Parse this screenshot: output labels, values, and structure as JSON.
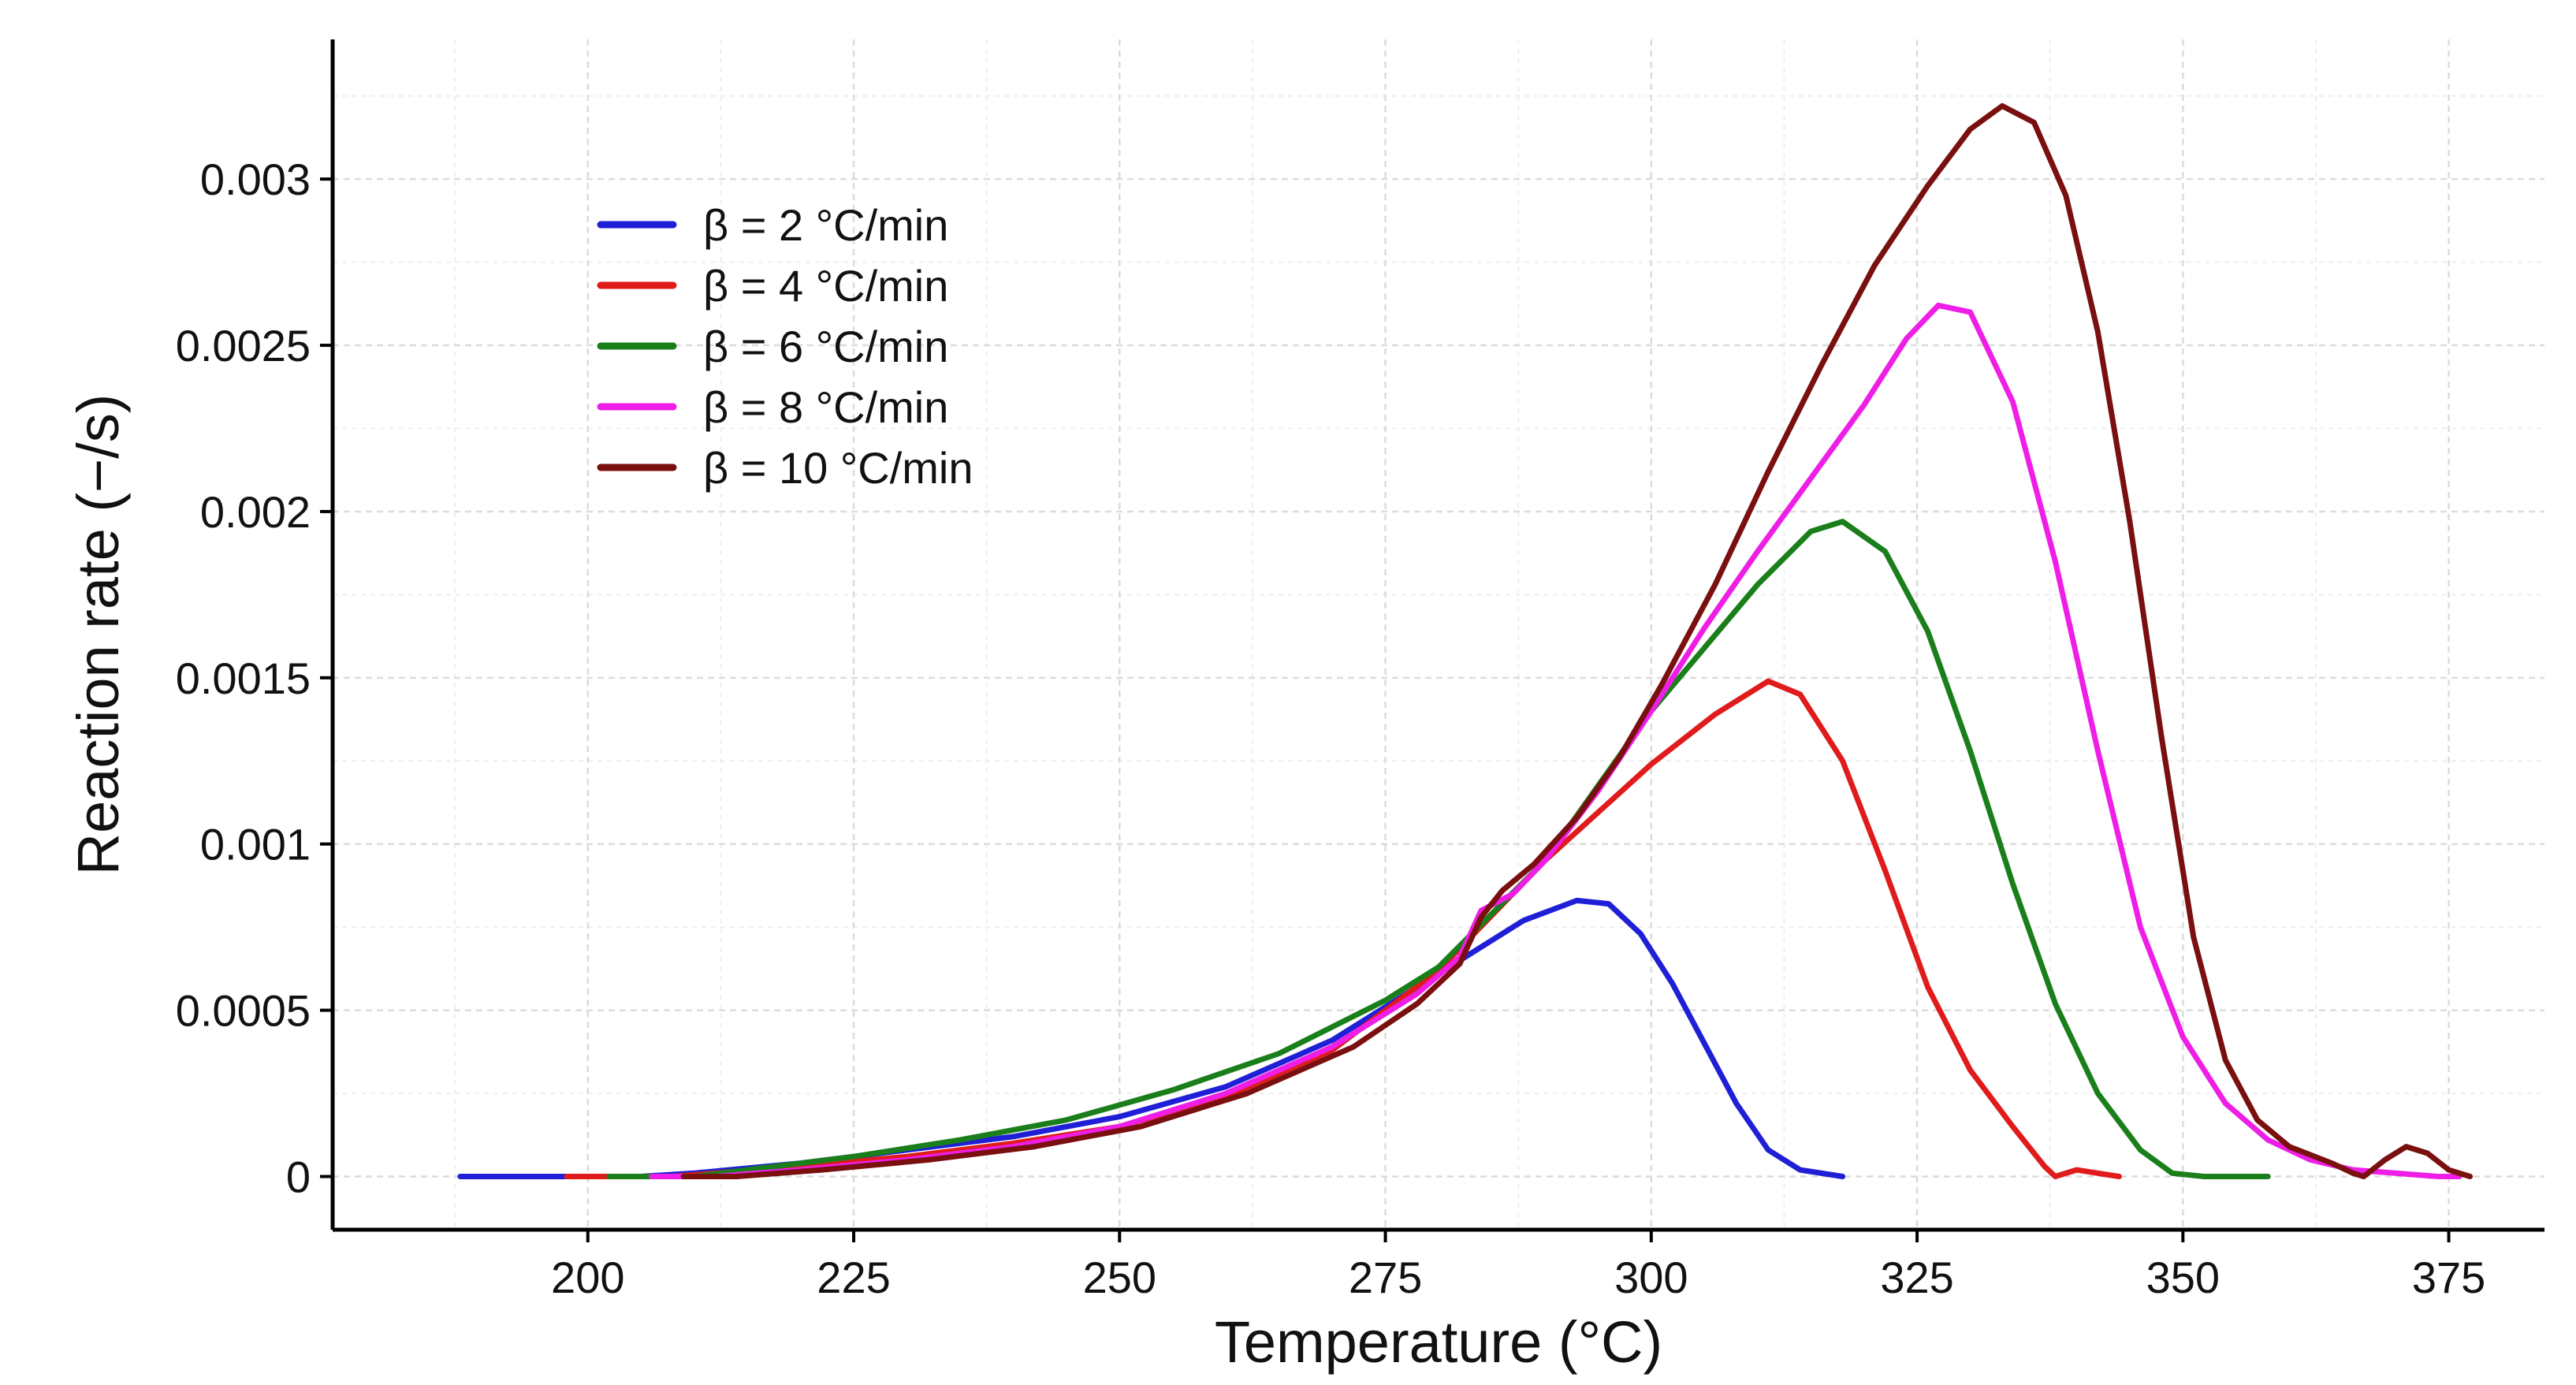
{
  "chart_data": {
    "type": "line",
    "title": "",
    "xlabel": "Temperature (°C)",
    "ylabel": "Reaction rate (−/s)",
    "xlim": [
      176,
      384
    ],
    "ylim": [
      -0.00016,
      0.00342
    ],
    "x_ticks": [
      200,
      225,
      250,
      275,
      300,
      325,
      350,
      375
    ],
    "x_tick_labels": [
      "200",
      "225",
      "250",
      "275",
      "300",
      "325",
      "350",
      "375"
    ],
    "y_ticks": [
      0,
      0.0005,
      0.001,
      0.0015,
      0.002,
      0.0025,
      0.003
    ],
    "y_tick_labels": [
      "0",
      "0.0005",
      "0.001",
      "0.0015",
      "0.002",
      "0.0025",
      "0.003"
    ],
    "grid": true,
    "legend_position": "top-left",
    "series": [
      {
        "name": "β = 2 °C/min",
        "color": "#1f1fd6",
        "points": [
          [
            188,
            0
          ],
          [
            205,
            0
          ],
          [
            210,
            1e-05
          ],
          [
            220,
            4e-05
          ],
          [
            230,
            8e-05
          ],
          [
            240,
            0.00012
          ],
          [
            250,
            0.00018
          ],
          [
            260,
            0.00027
          ],
          [
            270,
            0.00041
          ],
          [
            278,
            0.00057
          ],
          [
            283,
            0.00067
          ],
          [
            288,
            0.00077
          ],
          [
            293,
            0.00083
          ],
          [
            296,
            0.00082
          ],
          [
            299,
            0.00073
          ],
          [
            302,
            0.00058
          ],
          [
            305,
            0.0004
          ],
          [
            308,
            0.00022
          ],
          [
            311,
            8e-05
          ],
          [
            314,
            2e-05
          ],
          [
            318,
            0
          ]
        ]
      },
      {
        "name": "β = 4 °C/min",
        "color": "#e01b1b",
        "points": [
          [
            198,
            0
          ],
          [
            208,
            0
          ],
          [
            212,
            1e-05
          ],
          [
            220,
            3e-05
          ],
          [
            230,
            6e-05
          ],
          [
            240,
            0.0001
          ],
          [
            250,
            0.00015
          ],
          [
            260,
            0.00024
          ],
          [
            270,
            0.00038
          ],
          [
            280,
            0.00062
          ],
          [
            290,
            0.00095
          ],
          [
            300,
            0.00124
          ],
          [
            306,
            0.00139
          ],
          [
            311,
            0.00149
          ],
          [
            314,
            0.00145
          ],
          [
            318,
            0.00125
          ],
          [
            322,
            0.00092
          ],
          [
            326,
            0.00057
          ],
          [
            330,
            0.00032
          ],
          [
            334,
            0.00015
          ],
          [
            337,
            3e-05
          ],
          [
            338,
            0
          ],
          [
            340,
            2e-05
          ],
          [
            342,
            1e-05
          ],
          [
            344,
            0
          ]
        ]
      },
      {
        "name": "β = 6 °C/min",
        "color": "#1a7f1a",
        "points": [
          [
            202,
            0
          ],
          [
            210,
            0
          ],
          [
            215,
            2e-05
          ],
          [
            225,
            6e-05
          ],
          [
            235,
            0.00011
          ],
          [
            245,
            0.00017
          ],
          [
            255,
            0.00026
          ],
          [
            265,
            0.00037
          ],
          [
            275,
            0.00053
          ],
          [
            280,
            0.00063
          ],
          [
            290,
            0.00095
          ],
          [
            300,
            0.0014
          ],
          [
            310,
            0.00178
          ],
          [
            315,
            0.00194
          ],
          [
            318,
            0.00197
          ],
          [
            322,
            0.00188
          ],
          [
            326,
            0.00164
          ],
          [
            330,
            0.00128
          ],
          [
            334,
            0.00088
          ],
          [
            338,
            0.00052
          ],
          [
            342,
            0.00025
          ],
          [
            346,
            8e-05
          ],
          [
            349,
            1e-05
          ],
          [
            352,
            0
          ],
          [
            358,
            0
          ]
        ]
      },
      {
        "name": "β = 8 °C/min",
        "color": "#ee1ee6",
        "points": [
          [
            206,
            0
          ],
          [
            212,
            0
          ],
          [
            220,
            2e-05
          ],
          [
            230,
            5e-05
          ],
          [
            240,
            9e-05
          ],
          [
            250,
            0.00015
          ],
          [
            260,
            0.00025
          ],
          [
            270,
            0.00039
          ],
          [
            278,
            0.00055
          ],
          [
            282,
            0.00066
          ],
          [
            284,
            0.0008
          ],
          [
            287,
            0.00085
          ],
          [
            290,
            0.00095
          ],
          [
            295,
            0.00116
          ],
          [
            300,
            0.0014
          ],
          [
            305,
            0.00165
          ],
          [
            310,
            0.00188
          ],
          [
            315,
            0.0021
          ],
          [
            320,
            0.00232
          ],
          [
            324,
            0.00252
          ],
          [
            327,
            0.00262
          ],
          [
            330,
            0.0026
          ],
          [
            334,
            0.00233
          ],
          [
            338,
            0.00185
          ],
          [
            342,
            0.00128
          ],
          [
            346,
            0.00075
          ],
          [
            350,
            0.00042
          ],
          [
            354,
            0.00022
          ],
          [
            358,
            0.00011
          ],
          [
            362,
            5e-05
          ],
          [
            366,
            2e-05
          ],
          [
            370,
            1e-05
          ],
          [
            374,
            0.0
          ],
          [
            376,
            0
          ]
        ]
      },
      {
        "name": "β = 10 °C/min",
        "color": "#7a0f0f",
        "points": [
          [
            209,
            0
          ],
          [
            214,
            0
          ],
          [
            222,
            2e-05
          ],
          [
            232,
            5e-05
          ],
          [
            242,
            9e-05
          ],
          [
            252,
            0.00015
          ],
          [
            262,
            0.00025
          ],
          [
            272,
            0.00039
          ],
          [
            278,
            0.00052
          ],
          [
            282,
            0.00064
          ],
          [
            284,
            0.00078
          ],
          [
            286,
            0.00086
          ],
          [
            289,
            0.00094
          ],
          [
            293,
            0.00108
          ],
          [
            297,
            0.00126
          ],
          [
            301,
            0.00148
          ],
          [
            306,
            0.00178
          ],
          [
            311,
            0.00212
          ],
          [
            316,
            0.00244
          ],
          [
            321,
            0.00274
          ],
          [
            326,
            0.00298
          ],
          [
            330,
            0.00315
          ],
          [
            333,
            0.00322
          ],
          [
            336,
            0.00317
          ],
          [
            339,
            0.00295
          ],
          [
            342,
            0.00254
          ],
          [
            345,
            0.00197
          ],
          [
            348,
            0.00132
          ],
          [
            351,
            0.00072
          ],
          [
            354,
            0.00035
          ],
          [
            357,
            0.00017
          ],
          [
            360,
            9e-05
          ],
          [
            364,
            4e-05
          ],
          [
            366,
            1e-05
          ],
          [
            367,
            0
          ],
          [
            369,
            5e-05
          ],
          [
            371,
            9e-05
          ],
          [
            373,
            7e-05
          ],
          [
            375,
            2e-05
          ],
          [
            377,
            0
          ]
        ]
      }
    ]
  }
}
